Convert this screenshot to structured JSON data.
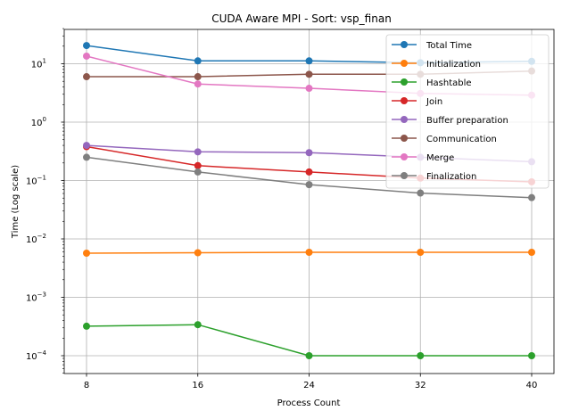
{
  "chart_data": {
    "type": "line",
    "title": "CUDA Aware MPI - Sort: vsp_finan",
    "xlabel": "Process Count",
    "ylabel": "Time (Log scale)",
    "yscale": "log",
    "ylim": [
      5e-05,
      40
    ],
    "grid": true,
    "legend_position": "top-right",
    "x": [
      8,
      16,
      24,
      32,
      40
    ],
    "x_tick_labels": [
      "8",
      "16",
      "24",
      "32",
      "40"
    ],
    "y_ticks": [
      {
        "value": 0.0001,
        "base": "10",
        "exp": "−4"
      },
      {
        "value": 0.001,
        "base": "10",
        "exp": "−3"
      },
      {
        "value": 0.01,
        "base": "10",
        "exp": "−2"
      },
      {
        "value": 0.1,
        "base": "10",
        "exp": "−1"
      },
      {
        "value": 1,
        "base": "10",
        "exp": "0"
      },
      {
        "value": 10,
        "base": "10",
        "exp": "1"
      }
    ],
    "series": [
      {
        "name": "Total Time",
        "color": "#1f77b4",
        "values": [
          20.5,
          11.2,
          11.2,
          10.4,
          11.0
        ]
      },
      {
        "name": "Initialization",
        "color": "#ff7f0e",
        "values": [
          0.0057,
          0.0058,
          0.0059,
          0.0059,
          0.0059
        ]
      },
      {
        "name": "Hashtable",
        "color": "#2ca02c",
        "values": [
          0.00032,
          0.00034,
          0.0001,
          0.0001,
          0.0001
        ]
      },
      {
        "name": "Join",
        "color": "#d62728",
        "values": [
          0.38,
          0.18,
          0.14,
          0.11,
          0.095
        ]
      },
      {
        "name": "Buffer preparation",
        "color": "#9467bd",
        "values": [
          0.4,
          0.31,
          0.3,
          0.25,
          0.21
        ]
      },
      {
        "name": "Communication",
        "color": "#8c564b",
        "values": [
          6.0,
          6.0,
          6.6,
          6.6,
          7.5
        ]
      },
      {
        "name": "Merge",
        "color": "#e377c2",
        "values": [
          13.5,
          4.5,
          3.8,
          3.1,
          2.9
        ]
      },
      {
        "name": "Finalization",
        "color": "#7f7f7f",
        "values": [
          0.25,
          0.14,
          0.085,
          0.061,
          0.051
        ]
      }
    ]
  }
}
